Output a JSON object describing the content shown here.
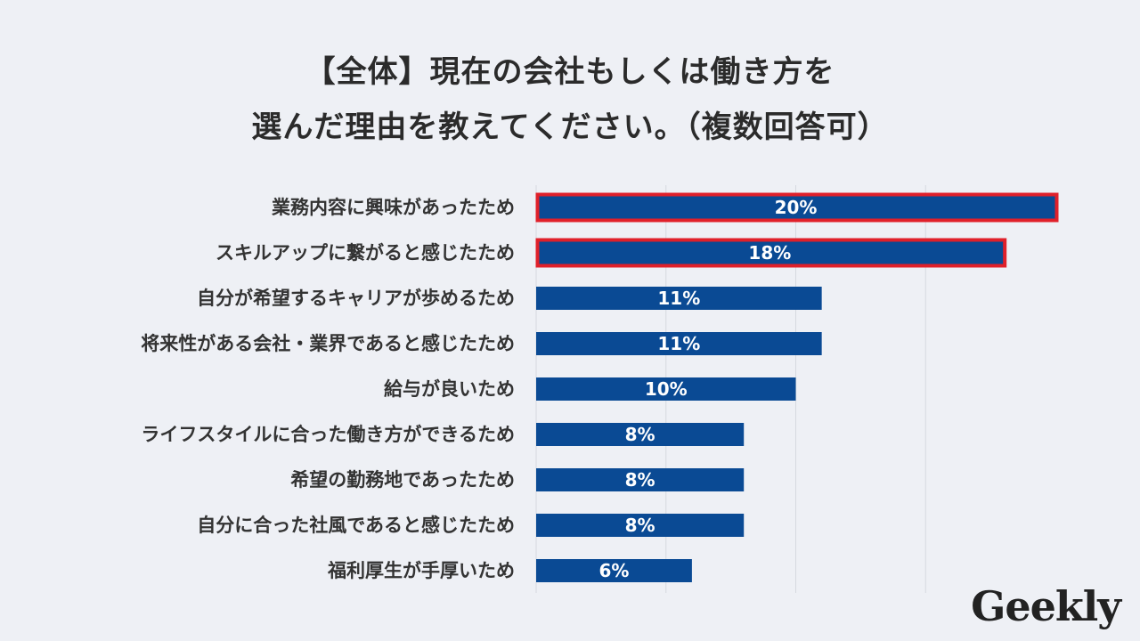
{
  "title_line1": "【全体】現在の会社もしくは働き方を",
  "title_line2": "選んだ理由を教えてください。（複数回答可）",
  "logo_text": "Geekly",
  "colors": {
    "bar": "#0a4a94",
    "highlight": "#e0202a",
    "grid": "#d6d9e0",
    "background": "#eef0f5"
  },
  "chart_data": {
    "type": "bar",
    "orientation": "horizontal",
    "categories": [
      "業務内容に興味があったため",
      "スキルアップに繋がると感じたため",
      "自分が希望するキャリアが歩めるため",
      "将来性がある会社・業界であると感じたため",
      "給与が良いため",
      "ライフスタイルに合った働き方ができるため",
      "希望の勤務地であったため",
      "自分に合った社風であると感じたため",
      "福利厚生が手厚いため"
    ],
    "values": [
      20,
      18,
      11,
      11,
      10,
      8,
      8,
      8,
      6
    ],
    "value_labels": [
      "20%",
      "18%",
      "11%",
      "11%",
      "10%",
      "8%",
      "8%",
      "8%",
      "6%"
    ],
    "highlighted": [
      0,
      1
    ],
    "xlim": [
      0,
      20
    ],
    "grid": true
  }
}
